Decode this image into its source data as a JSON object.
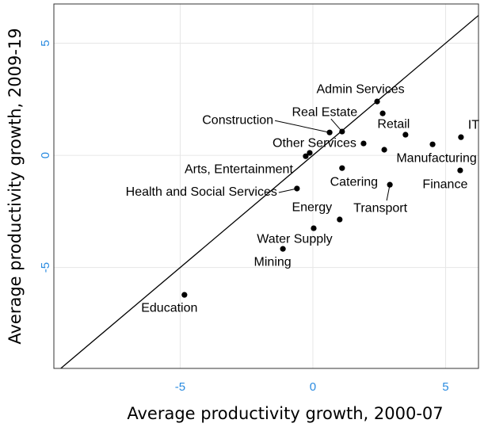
{
  "chart_data": {
    "type": "scatter",
    "x_label": "Average productivity growth, 2000-07",
    "y_label": "Average productivity growth, 2009-19",
    "xlim": [
      -9.76,
      6.24
    ],
    "ylim": [
      -9.5,
      6.75
    ],
    "xticks": [
      -5,
      0,
      5
    ],
    "yticks": [
      -5,
      0,
      5
    ],
    "grid": true,
    "diagonal": true,
    "series": [
      {
        "color": "#000000",
        "labels": [
          "Admin Services",
          null,
          "Construction",
          "Real Estate",
          "Retail",
          "IT",
          "Other Services",
          "Manufacturing",
          null,
          "Arts, Entertainment",
          null,
          "Catering",
          "Finance",
          "Health and Social Services",
          "Transport",
          "Energy",
          "Water Supply",
          "Mining",
          "Education"
        ],
        "x": [
          2.42,
          2.63,
          0.63,
          1.1,
          3.49,
          5.58,
          1.91,
          4.51,
          2.69,
          -0.27,
          -0.12,
          1.1,
          5.55,
          -0.6,
          2.9,
          1.01,
          0.03,
          -1.13,
          -4.84
        ],
        "values": [
          2.4,
          1.87,
          1.02,
          1.06,
          0.92,
          0.81,
          0.53,
          0.49,
          0.25,
          -0.04,
          0.11,
          -0.57,
          -0.67,
          -1.48,
          -1.31,
          -2.86,
          -3.25,
          -4.17,
          -6.22
        ]
      }
    ]
  }
}
